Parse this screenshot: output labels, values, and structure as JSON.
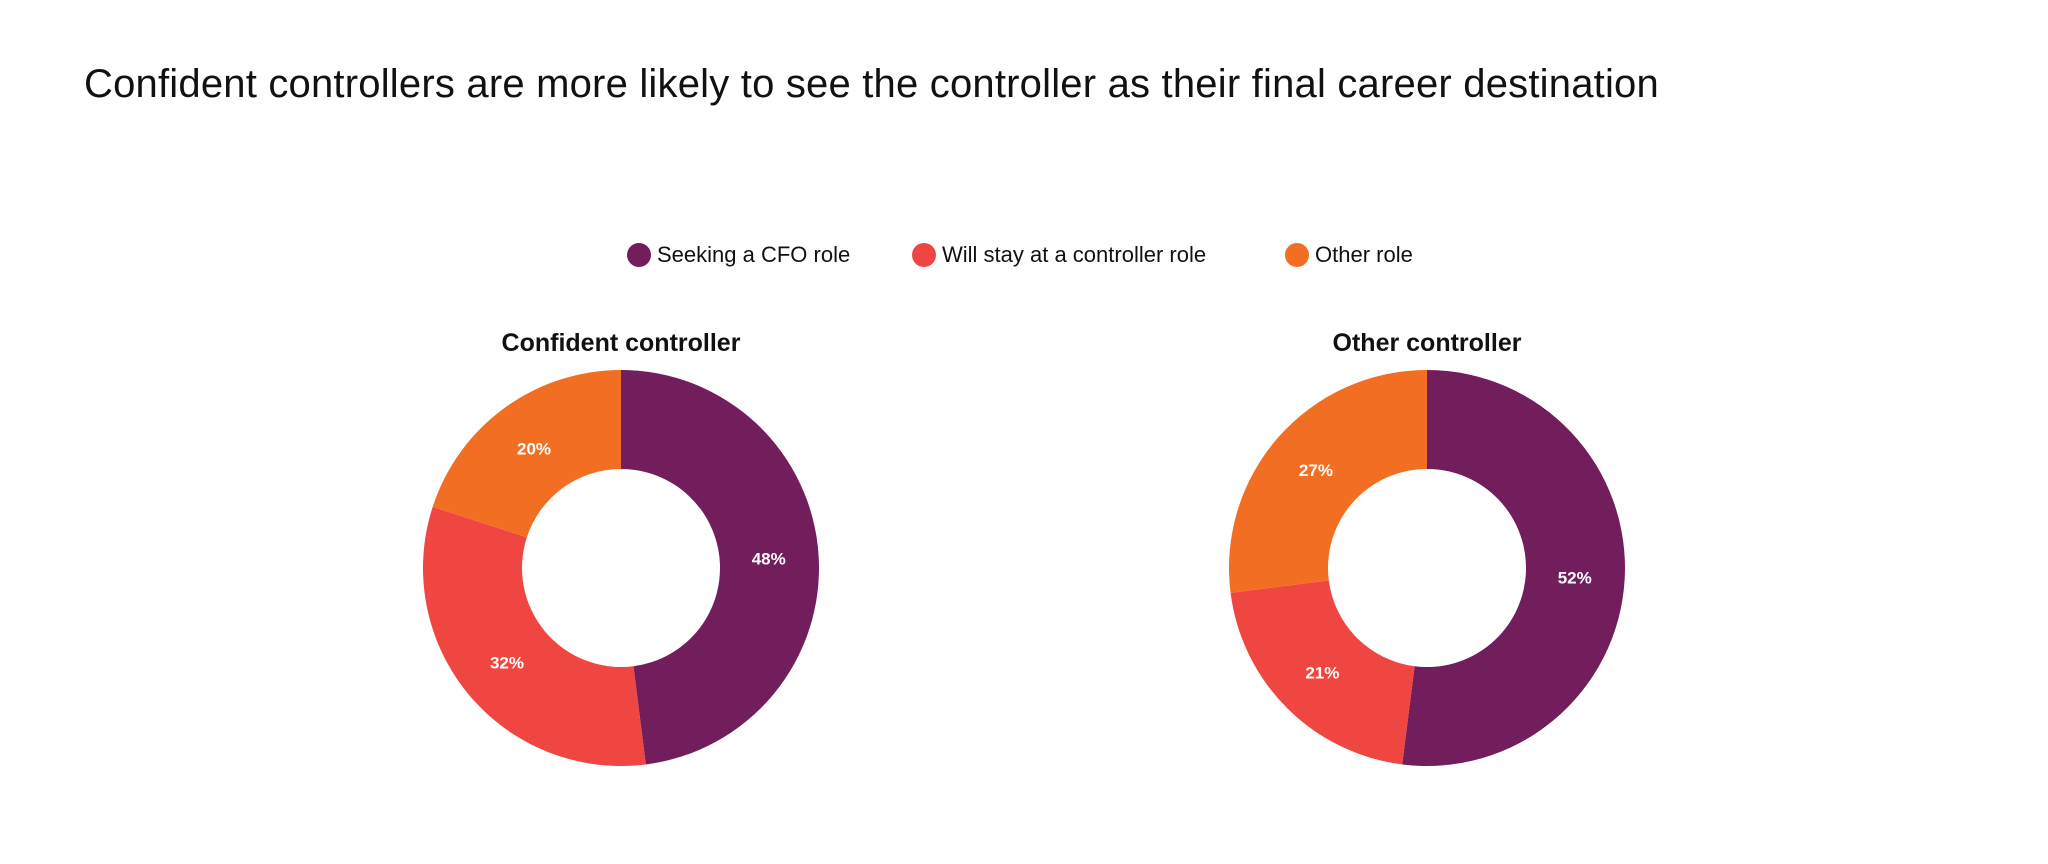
{
  "title": "Confident controllers are more likely to see the controller as their final career destination",
  "legend": [
    {
      "label": "Seeking a CFO role",
      "color": "#731E5C"
    },
    {
      "label": "Will stay at a controller role",
      "color": "#EF4641"
    },
    {
      "label": "Other role",
      "color": "#F26E22"
    }
  ],
  "chart_data": [
    {
      "type": "pie",
      "variant": "donut",
      "title": "Confident controller",
      "categories": [
        "Seeking a CFO role",
        "Will stay at a controller role",
        "Other role"
      ],
      "values": [
        48,
        32,
        20
      ],
      "labels": [
        "48%",
        "32%",
        "20%"
      ],
      "colors": [
        "#731E5C",
        "#EF4641",
        "#F26E22"
      ],
      "start": "top",
      "direction": "clockwise",
      "legend": "top-center"
    },
    {
      "type": "pie",
      "variant": "donut",
      "title": "Other controller",
      "categories": [
        "Seeking a CFO role",
        "Will stay at a controller role",
        "Other role"
      ],
      "values": [
        52,
        21,
        27
      ],
      "labels": [
        "52%",
        "21%",
        "27%"
      ],
      "colors": [
        "#731E5C",
        "#EF4641",
        "#F26E22"
      ],
      "start": "top",
      "direction": "clockwise",
      "legend": "top-center"
    }
  ]
}
